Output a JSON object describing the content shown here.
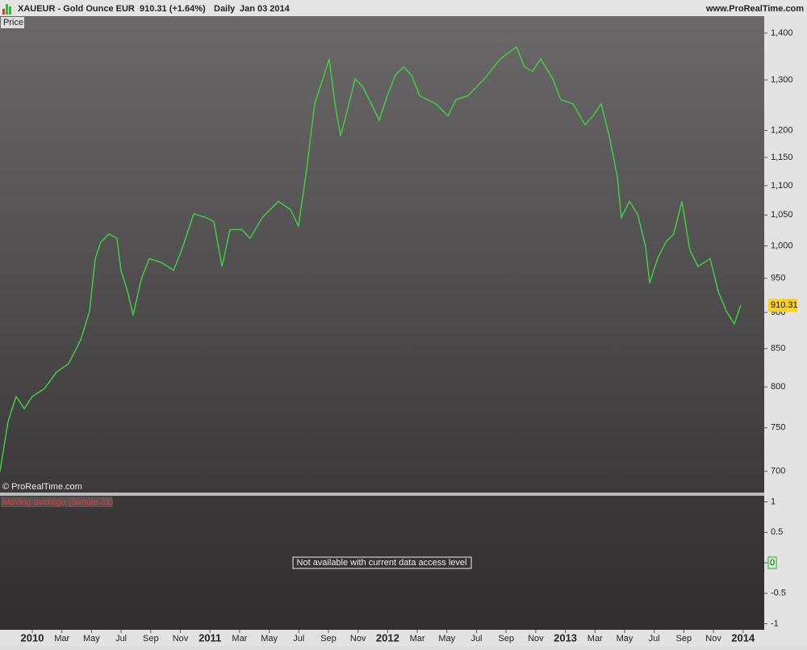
{
  "header": {
    "symbol": "XAUEUR - Gold Ounce EUR",
    "quote": "910.31 (+1.64%)",
    "period": "Daily",
    "date": "Jan 03 2014",
    "site": "www.ProRealTime.com"
  },
  "chart_data": {
    "type": "line",
    "panel_label": "Price",
    "watermark": "© ProRealTime.com",
    "log_scale": true,
    "color": "#44cc44",
    "last_price": 910.31,
    "x": [
      -2.18,
      -1.63,
      -1.09,
      -0.54,
      0,
      0.82,
      1.63,
      2.45,
      3.27,
      3.87,
      4.25,
      4.63,
      5.18,
      5.72,
      5.99,
      6.43,
      6.81,
      7.36,
      7.9,
      8.72,
      9.54,
      10.08,
      10.9,
      11.72,
      12.26,
      12.81,
      13.35,
      14.17,
      14.71,
      15.53,
      16.62,
      17.44,
      17.98,
      18.53,
      19.07,
      19.62,
      20.05,
      20.44,
      20.82,
      21.25,
      21.8,
      22.34,
      22.89,
      23.43,
      23.98,
      24.52,
      25.07,
      25.61,
      26.16,
      27.25,
      28.07,
      28.61,
      29.43,
      30.52,
      31.61,
      32.7,
      33.24,
      33.79,
      34.33,
      35.15,
      35.69,
      36.51,
      37.33,
      37.87,
      38.42,
      38.96,
      39.51,
      39.78,
      40.33,
      40.87,
      41.42,
      41.69,
      42.23,
      42.78,
      43.32,
      43.87,
      44.41,
      44.96,
      45.78,
      46.32,
      46.87,
      47.41,
      47.84
    ],
    "series": [
      {
        "name": "XAUEUR",
        "color": "#44cc44",
        "values": [
          700,
          758,
          788,
          773,
          788,
          798,
          819,
          830,
          862,
          902,
          980,
          1006,
          1019,
          1012,
          962,
          931,
          896,
          949,
          980,
          974,
          962,
          993,
          1052,
          1046,
          1039,
          968,
          1026,
          1026,
          1012,
          1046,
          1073,
          1059,
          1032,
          1129,
          1252,
          1302,
          1344,
          1252,
          1190,
          1236,
          1302,
          1285,
          1252,
          1220,
          1268,
          1310,
          1327,
          1310,
          1268,
          1252,
          1228,
          1260,
          1268,
          1302,
          1344,
          1370,
          1327,
          1318,
          1344,
          1302,
          1260,
          1252,
          1211,
          1228,
          1252,
          1190,
          1115,
          1046,
          1073,
          1052,
          999,
          943,
          980,
          1006,
          1019,
          1073,
          993,
          968,
          980,
          931,
          902,
          884,
          910.31
        ]
      }
    ],
    "xlim": [
      -2.18,
      49.43
    ],
    "xticks": [
      {
        "value": 0,
        "label": "2010"
      },
      {
        "value": 2,
        "label": "Mar"
      },
      {
        "value": 4,
        "label": "May"
      },
      {
        "value": 6,
        "label": "Jul"
      },
      {
        "value": 8,
        "label": "Sep"
      },
      {
        "value": 10,
        "label": "Nov"
      },
      {
        "value": 12,
        "label": "2011"
      },
      {
        "value": 14,
        "label": "Mar"
      },
      {
        "value": 16,
        "label": "May"
      },
      {
        "value": 18,
        "label": "Jul"
      },
      {
        "value": 20,
        "label": "Sep"
      },
      {
        "value": 22,
        "label": "Nov"
      },
      {
        "value": 24,
        "label": "2012"
      },
      {
        "value": 26,
        "label": "Mar"
      },
      {
        "value": 28,
        "label": "May"
      },
      {
        "value": 30,
        "label": "Jul"
      },
      {
        "value": 32,
        "label": "Sep"
      },
      {
        "value": 34,
        "label": "Nov"
      },
      {
        "value": 36,
        "label": "2013"
      },
      {
        "value": 38,
        "label": "Mar"
      },
      {
        "value": 40,
        "label": "May"
      },
      {
        "value": 42,
        "label": "Jul"
      },
      {
        "value": 44,
        "label": "Sep"
      },
      {
        "value": 46,
        "label": "Nov"
      },
      {
        "value": 48,
        "label": "2014"
      }
    ],
    "ylim": [
      677,
      1438
    ],
    "yticks": [
      {
        "value": 1400,
        "label": "1,400"
      },
      {
        "value": 1300,
        "label": "1,300"
      },
      {
        "value": 1200,
        "label": "1,200"
      },
      {
        "value": 1150,
        "label": "1,150"
      },
      {
        "value": 1100,
        "label": "1,100"
      },
      {
        "value": 1050,
        "label": "1,050"
      },
      {
        "value": 1000,
        "label": "1,000"
      },
      950,
      900,
      850,
      800,
      750,
      700
    ]
  },
  "indicator": {
    "label": "Moving average (Simple 31)",
    "message": "Not available with current data access level",
    "ylim": [
      -1.1,
      1.1
    ],
    "yticks": [
      1,
      0.5,
      0,
      -0.5,
      -1
    ],
    "current": 0
  }
}
